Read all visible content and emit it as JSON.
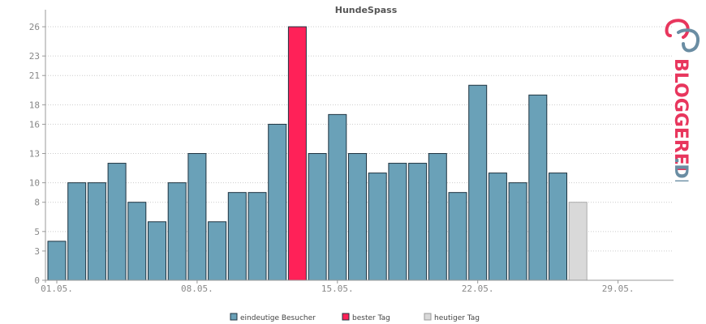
{
  "chart_data": {
    "type": "bar",
    "title": "HundeSpass",
    "xlabel": "",
    "ylabel": "",
    "ylim": [
      0,
      27
    ],
    "y_ticks": [
      "0",
      "3",
      "5",
      "8",
      "10",
      "13",
      "16",
      "18",
      "21",
      "23",
      "26"
    ],
    "y_tick_values": [
      0,
      3,
      5,
      8,
      10,
      13,
      16,
      18,
      21,
      23,
      26
    ],
    "x_ticks": [
      "01.05.",
      "08.05.",
      "15.05.",
      "22.05.",
      "29.05."
    ],
    "x_tick_days": [
      1,
      8,
      15,
      22,
      29
    ],
    "days": [
      1,
      2,
      3,
      4,
      5,
      6,
      7,
      8,
      9,
      10,
      11,
      12,
      13,
      14,
      15,
      16,
      17,
      18,
      19,
      20,
      21,
      22,
      23,
      24,
      25,
      26,
      27,
      28,
      29,
      30,
      31
    ],
    "series": [
      {
        "name": "eindeutige Besucher",
        "color": "#6aa1b8",
        "values": [
          4,
          10,
          10,
          12,
          8,
          6,
          10,
          13,
          6,
          9,
          9,
          16,
          26,
          13,
          17,
          13,
          11,
          12,
          12,
          13,
          9,
          20,
          11,
          10,
          19,
          11,
          8,
          null,
          null,
          null,
          null
        ]
      }
    ],
    "best_day": 13,
    "today": 27,
    "grid": true,
    "legend": {
      "position": "bottom",
      "items": [
        {
          "label": "eindeutige Besucher",
          "color": "#6aa1b8"
        },
        {
          "label": "bester Tag",
          "color": "#ff2158"
        },
        {
          "label": "heutiger Tag",
          "color": "#d9d9d9"
        }
      ]
    },
    "colors": {
      "regular": "#6aa1b8",
      "best": "#ff2158",
      "today": "#d9d9d9",
      "outline": "#1e3340",
      "today_outline": "#aaaaaa"
    }
  },
  "logo": {
    "word": "BLOGGEREI",
    "suffix": ".DE",
    "color_main": "#e8365d",
    "color_suffix": "#6a8da3"
  }
}
